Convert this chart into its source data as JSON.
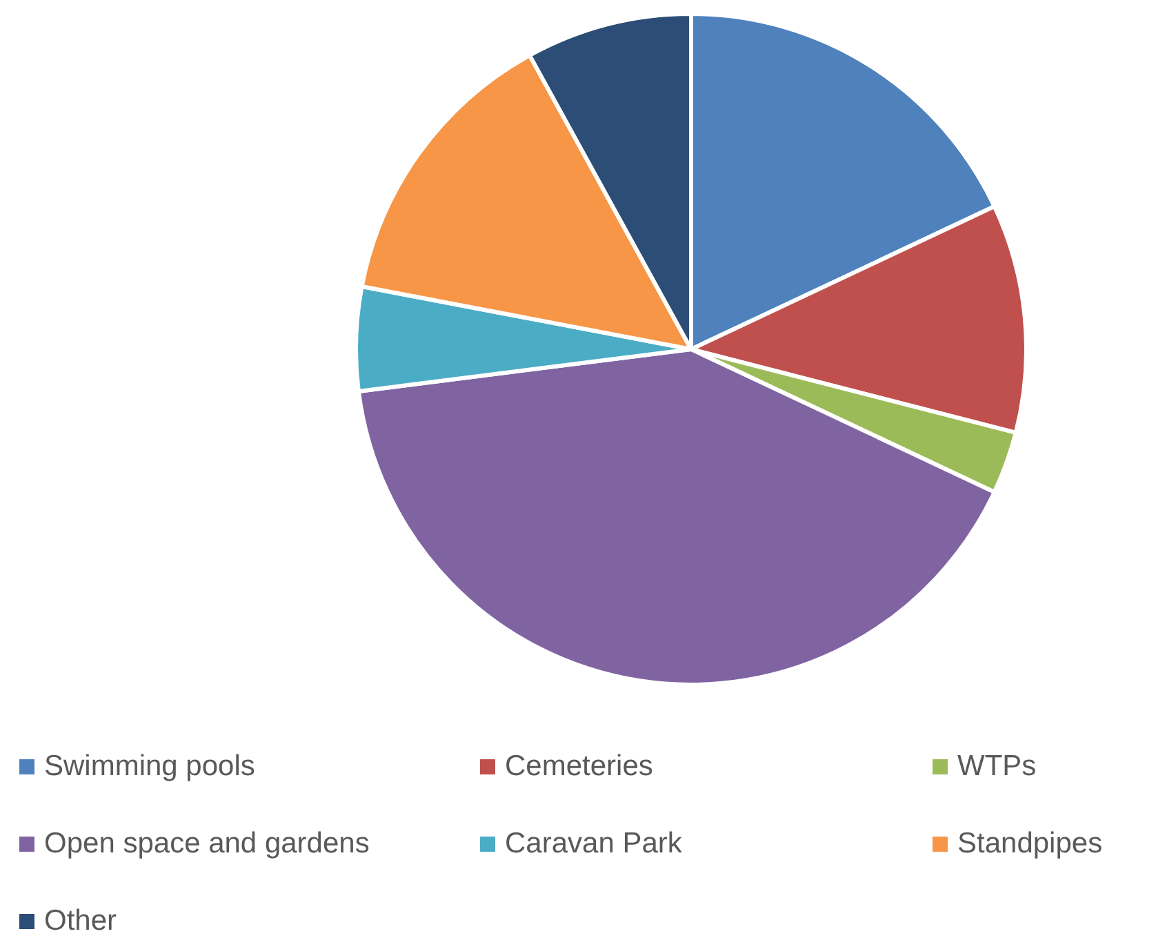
{
  "chart_data": {
    "type": "pie",
    "categories": [
      "Swimming pools",
      "Cemeteries",
      "WTPs",
      "Open space and gardens",
      "Caravan Park",
      "Standpipes",
      "Other"
    ],
    "values": [
      18,
      11,
      3,
      41,
      5,
      14,
      8
    ],
    "colors": [
      "#4f81bd",
      "#c0504d",
      "#9bbb59",
      "#8064a2",
      "#4bacc6",
      "#f79646",
      "#2c4d75"
    ],
    "legend": "bottom"
  }
}
